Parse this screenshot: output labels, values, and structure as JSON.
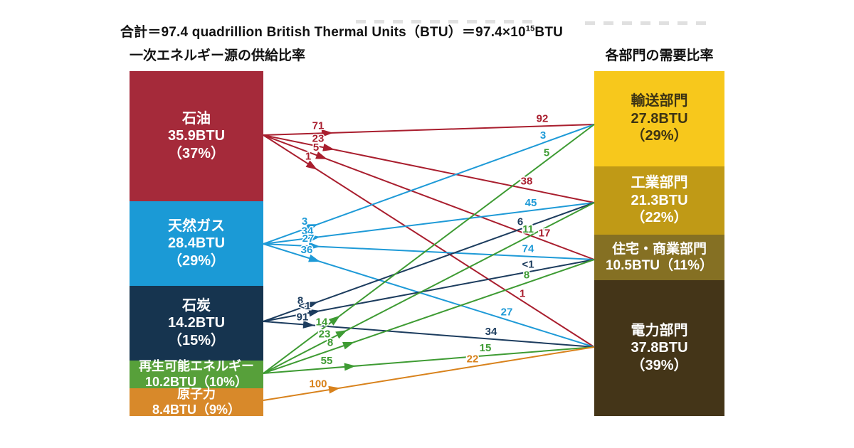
{
  "title": {
    "before_sup": "合計＝97.4 quadrillion British Thermal Units（BTU）＝97.4×10",
    "sup": "15",
    "after_sup": "BTU"
  },
  "left_header": "一次エネルギー源の供給比率",
  "right_header": "各部門の需要比率",
  "chart_data": {
    "type": "flow-diagram",
    "unit": "quadrillion BTU",
    "total_btu": 97.4,
    "sources": [
      {
        "id": "oil",
        "lines": [
          "石油",
          "35.9BTU",
          "（37%）"
        ],
        "value_btu": 35.9,
        "percent": 37,
        "color": "#A52A3A",
        "text_color": "#ffffff"
      },
      {
        "id": "gas",
        "lines": [
          "天然ガス",
          "28.4BTU",
          "（29%）"
        ],
        "value_btu": 28.4,
        "percent": 29,
        "color": "#1B9AD6",
        "text_color": "#ffffff"
      },
      {
        "id": "coal",
        "lines": [
          "石炭",
          "14.2BTU",
          "（15%）"
        ],
        "value_btu": 14.2,
        "percent": 15,
        "color": "#16344F",
        "text_color": "#ffffff"
      },
      {
        "id": "renewable",
        "lines": [
          "再生可能エネルギー",
          "10.2BTU（10%）"
        ],
        "value_btu": 10.2,
        "percent": 10,
        "color": "#57A03A",
        "text_color": "#ffffff"
      },
      {
        "id": "nuclear",
        "lines": [
          "原子力",
          "8.4BTU（9%）"
        ],
        "value_btu": 8.4,
        "percent": 9,
        "color": "#D8892A",
        "text_color": "#ffffff"
      }
    ],
    "sectors": [
      {
        "id": "transport",
        "lines": [
          "輸送部門",
          "27.8BTU",
          "（29%）"
        ],
        "value_btu": 27.8,
        "percent": 29,
        "color": "#F7C81C",
        "text_color": "#3D3414"
      },
      {
        "id": "industry",
        "lines": [
          "工業部門",
          "21.3BTU",
          "（22%）"
        ],
        "value_btu": 21.3,
        "percent": 22,
        "color": "#C09A16",
        "text_color": "#ffffff"
      },
      {
        "id": "residential",
        "lines": [
          "住宅・商業部門",
          "10.5BTU（11%）"
        ],
        "value_btu": 10.5,
        "percent": 11,
        "color": "#857023",
        "text_color": "#ffffff"
      },
      {
        "id": "electric",
        "lines": [
          "電力部門",
          "37.8BTU",
          "（39%）"
        ],
        "value_btu": 37.8,
        "percent": 39,
        "color": "#443518",
        "text_color": "#ffffff"
      }
    ],
    "flows": [
      {
        "source": "oil",
        "target": "transport",
        "source_percent": "71",
        "target_percent": "92",
        "color": "#A91E2E"
      },
      {
        "source": "oil",
        "target": "industry",
        "source_percent": "23",
        "target_percent": "38",
        "color": "#A91E2E"
      },
      {
        "source": "oil",
        "target": "residential",
        "source_percent": "5",
        "target_percent": "17",
        "color": "#A91E2E"
      },
      {
        "source": "oil",
        "target": "electric",
        "source_percent": "1",
        "target_percent": "1",
        "color": "#A91E2E"
      },
      {
        "source": "gas",
        "target": "transport",
        "source_percent": "3",
        "target_percent": "3",
        "color": "#1E9AD7"
      },
      {
        "source": "gas",
        "target": "industry",
        "source_percent": "34",
        "target_percent": "45",
        "color": "#1E9AD7"
      },
      {
        "source": "gas",
        "target": "residential",
        "source_percent": "27",
        "target_percent": "74",
        "color": "#1E9AD7"
      },
      {
        "source": "gas",
        "target": "electric",
        "source_percent": "36",
        "target_percent": "27",
        "color": "#1E9AD7"
      },
      {
        "source": "coal",
        "target": "industry",
        "source_percent": "8",
        "target_percent": "6",
        "color": "#1C3C5E"
      },
      {
        "source": "coal",
        "target": "residential",
        "source_percent": "<1",
        "target_percent": "<1",
        "color": "#1C3C5E"
      },
      {
        "source": "coal",
        "target": "electric",
        "source_percent": "91",
        "target_percent": "34",
        "color": "#1C3C5E"
      },
      {
        "source": "renewable",
        "target": "transport",
        "source_percent": "14",
        "target_percent": "5",
        "color": "#3E9B33"
      },
      {
        "source": "renewable",
        "target": "industry",
        "source_percent": "23",
        "target_percent": "11",
        "color": "#3E9B33"
      },
      {
        "source": "renewable",
        "target": "residential",
        "source_percent": "8",
        "target_percent": "8",
        "color": "#3E9B33"
      },
      {
        "source": "renewable",
        "target": "electric",
        "source_percent": "55",
        "target_percent": "15",
        "color": "#3E9B33"
      },
      {
        "source": "nuclear",
        "target": "electric",
        "source_percent": "100",
        "target_percent": "22",
        "color": "#D8821C"
      }
    ]
  }
}
